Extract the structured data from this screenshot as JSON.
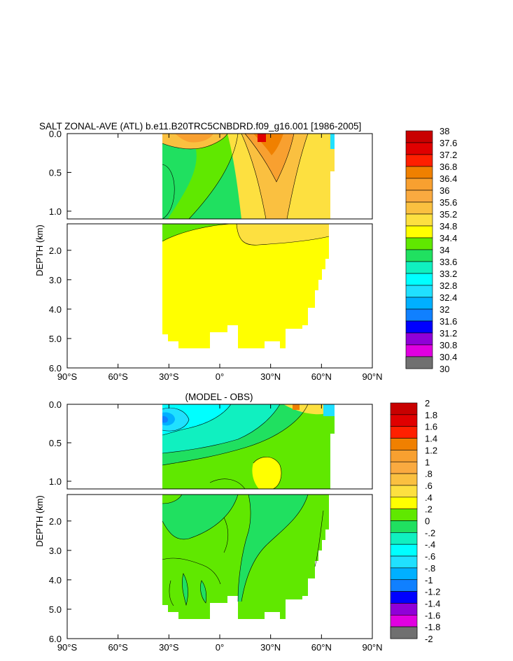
{
  "chart_data": [
    {
      "type": "heatmap",
      "title": "SALT ZONAL-AVE (ATL) b.e11.B20TRC5CNBDRD.f09_g16.001 [1986-2005]",
      "ylabel": "DEPTH (km)",
      "x_ticks": [
        "90°S",
        "60°S",
        "30°S",
        "0°",
        "30°N",
        "60°N",
        "90°N"
      ],
      "x_tick_values": [
        -90,
        -60,
        -30,
        0,
        30,
        60,
        90
      ],
      "y_ticks_upper": [
        "0.0",
        "0.5",
        "1.0"
      ],
      "y_ticks_upper_values": [
        0,
        0.5,
        1.0
      ],
      "y_ticks_lower": [
        "2.0",
        "3.0",
        "4.0",
        "5.0",
        "6.0"
      ],
      "y_ticks_lower_values": [
        2,
        3,
        4,
        5,
        6
      ],
      "xlim": [
        -90,
        90
      ],
      "ylim_upper": [
        0,
        1.1
      ],
      "ylim_lower": [
        1.1,
        6.0
      ],
      "colorbar": {
        "labels": [
          "38",
          "37.6",
          "37.2",
          "36.8",
          "36.4",
          "36",
          "35.6",
          "35.2",
          "34.8",
          "34.4",
          "34",
          "33.6",
          "33.2",
          "32.8",
          "32.4",
          "32",
          "31.6",
          "31.2",
          "30.8",
          "30.4",
          "30"
        ],
        "colors": [
          "#c80000",
          "#e00000",
          "#ff2000",
          "#f08000",
          "#f8a030",
          "#faaa40",
          "#fac040",
          "#fde040",
          "#ffff00",
          "#60e800",
          "#20e060",
          "#10f0c0",
          "#00ffff",
          "#20e0ff",
          "#00b0ff",
          "#1080ff",
          "#0000ff",
          "#9000d8",
          "#e000e0",
          "#d0d0d0",
          "#707070"
        ]
      }
    },
    {
      "type": "heatmap",
      "title": "(MODEL - OBS)",
      "ylabel": "DEPTH (km)",
      "x_ticks": [
        "90°S",
        "60°S",
        "30°S",
        "0°",
        "30°N",
        "60°N",
        "90°N"
      ],
      "x_tick_values": [
        -90,
        -60,
        -30,
        0,
        30,
        60,
        90
      ],
      "y_ticks_upper": [
        "0.0",
        "0.5",
        "1.0"
      ],
      "y_ticks_upper_values": [
        0,
        0.5,
        1.0
      ],
      "y_ticks_lower": [
        "2.0",
        "3.0",
        "4.0",
        "5.0",
        "6.0"
      ],
      "y_ticks_lower_values": [
        2,
        3,
        4,
        5,
        6
      ],
      "xlim": [
        -90,
        90
      ],
      "ylim_upper": [
        0,
        1.1
      ],
      "ylim_lower": [
        1.1,
        6.0
      ],
      "colorbar": {
        "labels": [
          "2",
          "1.8",
          "1.6",
          "1.4",
          "1.2",
          "1",
          ".8",
          ".6",
          ".4",
          ".2",
          "0",
          "-.2",
          "-.4",
          "-.6",
          "-.8",
          "-1",
          "-1.2",
          "-1.4",
          "-1.6",
          "-1.8",
          "-2"
        ],
        "colors": [
          "#c80000",
          "#e00000",
          "#ff2000",
          "#f08000",
          "#f8a030",
          "#faaa40",
          "#fac040",
          "#fde040",
          "#ffff00",
          "#60e800",
          "#20e060",
          "#10f0c0",
          "#00ffff",
          "#20e0ff",
          "#00b0ff",
          "#1080ff",
          "#0000ff",
          "#9000d8",
          "#e000e0",
          "#d0d0d0",
          "#707070"
        ]
      }
    }
  ]
}
